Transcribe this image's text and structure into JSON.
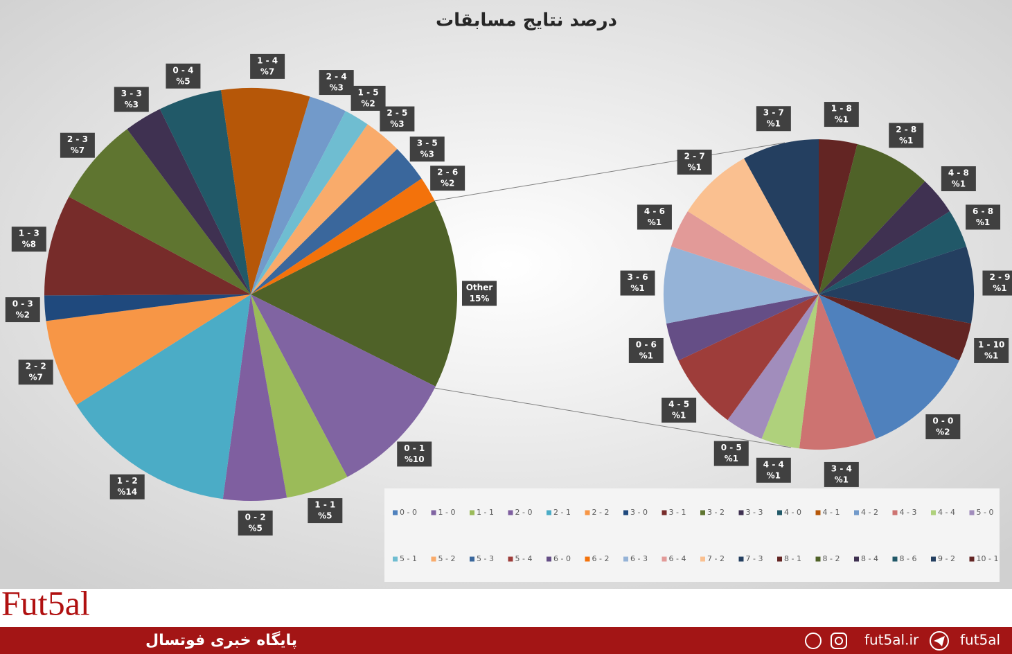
{
  "chart_data": {
    "type": "pie-of-pie",
    "title": "درصد نتایج مسابقات",
    "pies": [
      {
        "categories": [
          "Other",
          "1 - 0",
          "1 - 1",
          "2 - 0",
          "2 - 1",
          "2 - 2",
          "3 - 0",
          "3 - 1",
          "3 - 2",
          "3 - 3",
          "4 - 0",
          "4 - 1",
          "4 - 2",
          "5 - 1",
          "5 - 2",
          "5 - 3",
          "6 - 2"
        ],
        "values": [
          15,
          10,
          5,
          5,
          14,
          7,
          2,
          8,
          7,
          3,
          5,
          7,
          3,
          2,
          3,
          3,
          2
        ],
        "value_labels": [
          "15%",
          "%10",
          "%5",
          "%5",
          "%14",
          "%7",
          "%2",
          "%8",
          "%7",
          "%3",
          "%5",
          "%7",
          "%3",
          "%2",
          "%3",
          "%3",
          "%2"
        ],
        "colors": [
          "#4F6228",
          "#8064A2",
          "#9BBB59",
          "#7F5FA0",
          "#4BACC6",
          "#F79646",
          "#1F497D",
          "#772C2A",
          "#5F7530",
          "#3F3151",
          "#215968",
          "#B65708",
          "#729ACA",
          "#6FBDD1",
          "#F9AB6B",
          "#3A679C",
          "#F3720B"
        ]
      },
      {
        "categories": [
          "8 - 1",
          "8 - 2",
          "8 - 4",
          "8 - 6",
          "9 - 2",
          "10 - 1",
          "0 - 0",
          "4 - 3",
          "4 - 4",
          "5 - 0",
          "5 - 4",
          "6 - 0",
          "6 - 3",
          "6 - 4",
          "7 - 2",
          "7 - 3"
        ],
        "values": [
          0.6,
          1.2,
          0.6,
          0.6,
          1.2,
          0.6,
          1.8,
          1.2,
          0.6,
          0.6,
          1.2,
          0.6,
          1.2,
          0.6,
          1.2,
          1.2
        ],
        "value_labels": [
          "%1",
          "%1",
          "%1",
          "%1",
          "%1",
          "%1",
          "%2",
          "%1",
          "%1",
          "%1",
          "%1",
          "%1",
          "%1",
          "%1",
          "%1",
          "%1"
        ],
        "colors": [
          "#632523",
          "#4F6228",
          "#3F3151",
          "#215868",
          "#243F60",
          "#632523",
          "#4F81BD",
          "#CD7371",
          "#AFD17C",
          "#A18DBC",
          "#9E3D3A",
          "#654E86",
          "#95B3D7",
          "#E29A98",
          "#FAC090",
          "#243F60"
        ]
      }
    ],
    "legend": [
      {
        "name": "0 - 0",
        "color": "#4F81BD"
      },
      {
        "name": "1 - 0",
        "color": "#8064A2"
      },
      {
        "name": "1 - 1",
        "color": "#9BBB59"
      },
      {
        "name": "2 - 0",
        "color": "#7F5FA0"
      },
      {
        "name": "2 - 1",
        "color": "#4BACC6"
      },
      {
        "name": "2 - 2",
        "color": "#F79646"
      },
      {
        "name": "3 - 0",
        "color": "#1F497D"
      },
      {
        "name": "3 - 1",
        "color": "#772C2A"
      },
      {
        "name": "3 - 2",
        "color": "#5F7530"
      },
      {
        "name": "3 - 3",
        "color": "#3F3151"
      },
      {
        "name": "4 - 0",
        "color": "#215968"
      },
      {
        "name": "4 - 1",
        "color": "#B65708"
      },
      {
        "name": "4 - 2",
        "color": "#729ACA"
      },
      {
        "name": "4 - 3",
        "color": "#CD7371"
      },
      {
        "name": "4 - 4",
        "color": "#AFD17C"
      },
      {
        "name": "5 - 0",
        "color": "#A18DBC"
      },
      {
        "name": "5 - 1",
        "color": "#6FBDD1"
      },
      {
        "name": "5 - 2",
        "color": "#F9AB6B"
      },
      {
        "name": "5 - 3",
        "color": "#3A679C"
      },
      {
        "name": "5 - 4",
        "color": "#9E3D3A"
      },
      {
        "name": "6 - 0",
        "color": "#654E86"
      },
      {
        "name": "6 - 2",
        "color": "#F3720B"
      },
      {
        "name": "6 - 3",
        "color": "#95B3D7"
      },
      {
        "name": "6 - 4",
        "color": "#E29A98"
      },
      {
        "name": "7 - 2",
        "color": "#FAC090"
      },
      {
        "name": "7 - 3",
        "color": "#243F60"
      },
      {
        "name": "8 - 1",
        "color": "#632523"
      },
      {
        "name": "8 - 2",
        "color": "#4F6228"
      },
      {
        "name": "8 - 4",
        "color": "#3F3151"
      },
      {
        "name": "8 - 6",
        "color": "#215868"
      },
      {
        "name": "9 - 2",
        "color": "#243F60"
      },
      {
        "name": "10 - 1",
        "color": "#632523"
      }
    ]
  },
  "footer": {
    "logo": "Fut5al",
    "tagline": "پایگاه خبری فوتسال",
    "website": "fut5al.ir",
    "telegram": "fut5al"
  }
}
